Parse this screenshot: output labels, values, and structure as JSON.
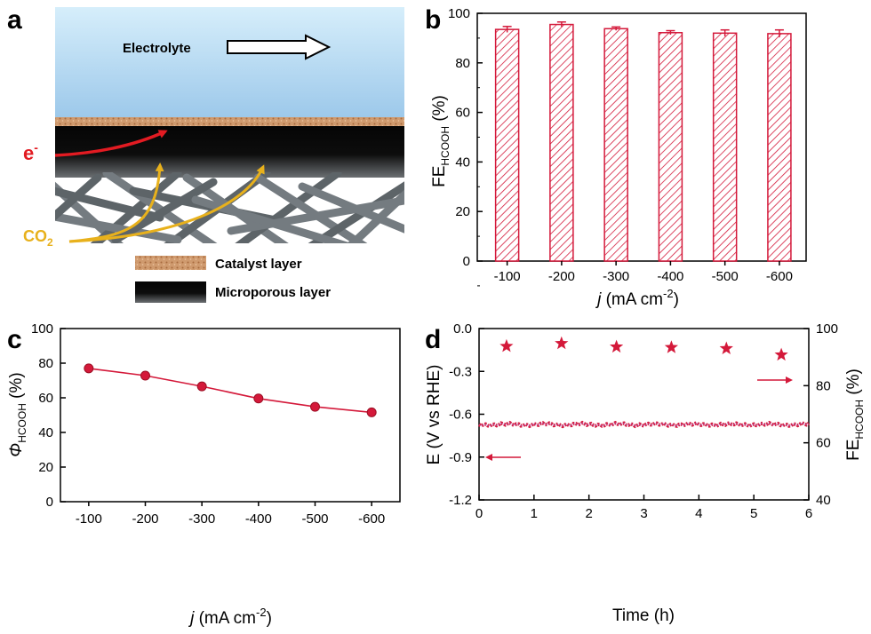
{
  "panel_labels": [
    "a",
    "b",
    "c",
    "d"
  ],
  "schematic": {
    "electrolyte_label": "Electrolyte",
    "electron_label": "e",
    "electron_sup": "-",
    "co2_label": "CO",
    "co2_sub": "2",
    "legend": [
      {
        "label": "Catalyst layer",
        "color": "#c9916a"
      },
      {
        "label": "Microporous layer",
        "color": "#111111"
      }
    ]
  },
  "colors": {
    "accent": "#d4193a",
    "arrow_e": "#e21b22",
    "arrow_co2": "#e8b11c"
  },
  "chart_data": [
    {
      "panel": "b",
      "type": "bar",
      "categories": [
        "-100",
        "-200",
        "-300",
        "-400",
        "-500",
        "-600"
      ],
      "values": [
        93.5,
        95.5,
        93.8,
        92.2,
        92.0,
        91.8
      ],
      "errors": [
        1.2,
        1.0,
        0.7,
        0.8,
        1.3,
        1.5
      ],
      "ylim": [
        0,
        100
      ],
      "yticks": [
        "0",
        "20",
        "40",
        "60",
        "80",
        "100"
      ],
      "ylabel": {
        "main": "FE",
        "sub": "HCOOH",
        "unit": " (%)"
      },
      "xlabel": {
        "italic": "j",
        "main": " (mA cm",
        "sup": "-2",
        "end": ")"
      },
      "bar_fill": "hatched",
      "grid": false
    },
    {
      "panel": "c",
      "type": "line",
      "categories": [
        "-100",
        "-200",
        "-300",
        "-400",
        "-500",
        "-600"
      ],
      "values": [
        77.0,
        72.8,
        66.6,
        59.6,
        54.8,
        51.6
      ],
      "ylim": [
        0,
        100
      ],
      "yticks": [
        "0",
        "20",
        "40",
        "60",
        "80",
        "100"
      ],
      "ylabel": {
        "main": "Φ",
        "sub": "HCOOH",
        "unit": " (%)"
      },
      "xlabel": {
        "italic": "j",
        "main": " (mA cm",
        "sup": "-2",
        "end": ")"
      },
      "grid": false
    },
    {
      "panel": "d",
      "type": "line",
      "x_range": [
        0,
        6
      ],
      "xticks": [
        "0",
        "1",
        "2",
        "3",
        "4",
        "5",
        "6"
      ],
      "xlabel": "Time (h)",
      "left_axis": {
        "label": "E (V vs RHE)",
        "ylim": [
          -1.2,
          0.0
        ],
        "yticks": [
          "-1.2",
          "-0.9",
          "-0.6",
          "-0.3",
          "0.0"
        ],
        "series_name": "E",
        "value": -0.672
      },
      "right_axis": {
        "label": {
          "main": "FE",
          "sub": "HCOOH",
          "unit": " (%)"
        },
        "ylim": [
          40,
          100
        ],
        "yticks": [
          "40",
          "60",
          "80",
          "100"
        ],
        "series_x": [
          0.5,
          1.5,
          2.5,
          3.5,
          4.5,
          5.5
        ],
        "series_y": [
          93.8,
          94.8,
          93.6,
          93.4,
          93.0,
          90.8
        ],
        "marker": "star"
      },
      "grid": false
    }
  ]
}
